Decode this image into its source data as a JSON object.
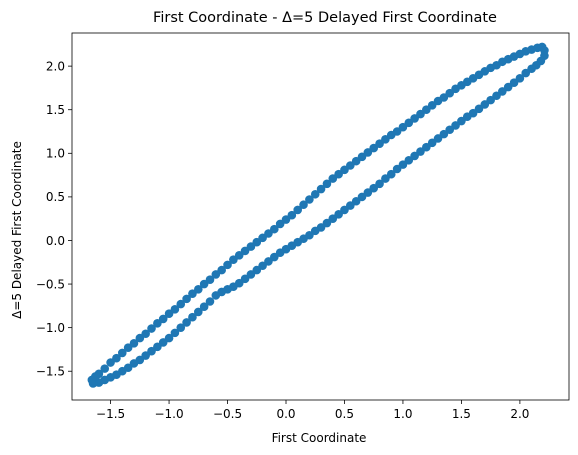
{
  "chart_data": {
    "type": "scatter",
    "title": "First Coordinate - Δ=5 Delayed First Coordinate",
    "xlabel": "First Coordinate",
    "ylabel": "Δ=5 Delayed First Coordinate",
    "xlim": [
      -1.83,
      2.42
    ],
    "ylim": [
      -1.83,
      2.38
    ],
    "xticks": [
      -1.5,
      -1.0,
      -0.5,
      0.0,
      0.5,
      1.0,
      1.5,
      2.0
    ],
    "yticks": [
      -1.5,
      -1.0,
      -0.5,
      0.0,
      0.5,
      1.0,
      1.5,
      2.0
    ],
    "xtick_labels": [
      "−1.5",
      "−1.0",
      "−0.5",
      "0.0",
      "0.5",
      "1.0",
      "1.5",
      "2.0"
    ],
    "ytick_labels": [
      "−1.5",
      "−1.0",
      "−0.5",
      "0.0",
      "0.5",
      "1.0",
      "1.5",
      "2.0"
    ],
    "grid": false,
    "marker_color": "#1f77b4",
    "series": [
      {
        "points": [
          [
            -1.64,
            -1.63
          ],
          [
            -1.6,
            -1.53
          ],
          [
            -1.55,
            -1.47
          ],
          [
            -1.5,
            -1.4
          ],
          [
            -1.45,
            -1.35
          ],
          [
            -1.4,
            -1.29
          ],
          [
            -1.35,
            -1.23
          ],
          [
            -1.3,
            -1.18
          ],
          [
            -1.25,
            -1.12
          ],
          [
            -1.2,
            -1.07
          ],
          [
            -1.15,
            -1.01
          ],
          [
            -1.1,
            -0.95
          ],
          [
            -1.05,
            -0.9
          ],
          [
            -1.0,
            -0.84
          ],
          [
            -0.95,
            -0.79
          ],
          [
            -0.9,
            -0.73
          ],
          [
            -0.85,
            -0.67
          ],
          [
            -0.8,
            -0.61
          ],
          [
            -0.75,
            -0.56
          ],
          [
            -0.7,
            -0.5
          ],
          [
            -0.65,
            -0.45
          ],
          [
            -0.6,
            -0.39
          ],
          [
            -0.55,
            -0.34
          ],
          [
            -0.5,
            -0.28
          ],
          [
            -0.45,
            -0.22
          ],
          [
            -0.4,
            -0.17
          ],
          [
            -0.35,
            -0.12
          ],
          [
            -0.3,
            -0.07
          ],
          [
            -0.25,
            -0.02
          ],
          [
            -0.2,
            0.03
          ],
          [
            -0.15,
            0.08
          ],
          [
            -0.1,
            0.13
          ],
          [
            -0.05,
            0.19
          ],
          [
            0.0,
            0.24
          ],
          [
            0.05,
            0.29
          ],
          [
            0.1,
            0.35
          ],
          [
            0.15,
            0.41
          ],
          [
            0.2,
            0.47
          ],
          [
            0.25,
            0.53
          ],
          [
            0.3,
            0.59
          ],
          [
            0.35,
            0.65
          ],
          [
            0.4,
            0.71
          ],
          [
            0.45,
            0.76
          ],
          [
            0.5,
            0.81
          ],
          [
            0.55,
            0.86
          ],
          [
            0.6,
            0.91
          ],
          [
            0.65,
            0.96
          ],
          [
            0.7,
            1.01
          ],
          [
            0.75,
            1.06
          ],
          [
            0.8,
            1.11
          ],
          [
            0.85,
            1.16
          ],
          [
            0.9,
            1.21
          ],
          [
            0.95,
            1.25
          ],
          [
            1.0,
            1.3
          ],
          [
            1.05,
            1.35
          ],
          [
            1.1,
            1.4
          ],
          [
            1.15,
            1.45
          ],
          [
            1.2,
            1.5
          ],
          [
            1.25,
            1.55
          ],
          [
            1.3,
            1.6
          ],
          [
            1.35,
            1.64
          ],
          [
            1.4,
            1.69
          ],
          [
            1.45,
            1.74
          ],
          [
            1.5,
            1.78
          ],
          [
            1.55,
            1.82
          ],
          [
            1.6,
            1.86
          ],
          [
            1.65,
            1.9
          ],
          [
            1.7,
            1.94
          ],
          [
            1.75,
            1.98
          ],
          [
            1.8,
            2.01
          ],
          [
            1.85,
            2.05
          ],
          [
            1.9,
            2.08
          ],
          [
            1.95,
            2.11
          ],
          [
            2.0,
            2.14
          ],
          [
            2.05,
            2.17
          ],
          [
            2.1,
            2.19
          ],
          [
            2.15,
            2.21
          ],
          [
            2.19,
            2.22
          ],
          [
            2.21,
            2.18
          ],
          [
            2.21,
            2.12
          ],
          [
            2.18,
            2.06
          ],
          [
            2.14,
            2.01
          ],
          [
            2.1,
            1.97
          ],
          [
            2.05,
            1.92
          ],
          [
            2.0,
            1.86
          ],
          [
            1.95,
            1.81
          ],
          [
            1.9,
            1.76
          ],
          [
            1.85,
            1.71
          ],
          [
            1.8,
            1.66
          ],
          [
            1.75,
            1.61
          ],
          [
            1.7,
            1.56
          ],
          [
            1.65,
            1.51
          ],
          [
            1.6,
            1.46
          ],
          [
            1.55,
            1.42
          ],
          [
            1.5,
            1.37
          ],
          [
            1.45,
            1.32
          ],
          [
            1.4,
            1.27
          ],
          [
            1.35,
            1.22
          ],
          [
            1.3,
            1.17
          ],
          [
            1.25,
            1.12
          ],
          [
            1.2,
            1.07
          ],
          [
            1.15,
            1.02
          ],
          [
            1.1,
            0.97
          ],
          [
            1.05,
            0.92
          ],
          [
            1.0,
            0.87
          ],
          [
            0.95,
            0.82
          ],
          [
            0.9,
            0.76
          ],
          [
            0.85,
            0.71
          ],
          [
            0.8,
            0.65
          ],
          [
            0.75,
            0.6
          ],
          [
            0.7,
            0.55
          ],
          [
            0.65,
            0.5
          ],
          [
            0.6,
            0.45
          ],
          [
            0.55,
            0.4
          ],
          [
            0.5,
            0.35
          ],
          [
            0.45,
            0.3
          ],
          [
            0.4,
            0.25
          ],
          [
            0.35,
            0.2
          ],
          [
            0.3,
            0.15
          ],
          [
            0.25,
            0.11
          ],
          [
            0.2,
            0.06
          ],
          [
            0.15,
            0.02
          ],
          [
            0.1,
            -0.02
          ],
          [
            0.05,
            -0.06
          ],
          [
            0.0,
            -0.1
          ],
          [
            -0.05,
            -0.14
          ],
          [
            -0.1,
            -0.19
          ],
          [
            -0.15,
            -0.24
          ],
          [
            -0.2,
            -0.29
          ],
          [
            -0.25,
            -0.34
          ],
          [
            -0.3,
            -0.39
          ],
          [
            -0.35,
            -0.44
          ],
          [
            -0.4,
            -0.49
          ],
          [
            -0.45,
            -0.53
          ],
          [
            -0.5,
            -0.56
          ],
          [
            -0.55,
            -0.59
          ],
          [
            -0.6,
            -0.63
          ],
          [
            -0.65,
            -0.7
          ],
          [
            -0.7,
            -0.76
          ],
          [
            -0.75,
            -0.82
          ],
          [
            -0.8,
            -0.88
          ],
          [
            -0.85,
            -0.94
          ],
          [
            -0.9,
            -1.0
          ],
          [
            -0.95,
            -1.06
          ],
          [
            -1.0,
            -1.12
          ],
          [
            -1.05,
            -1.17
          ],
          [
            -1.1,
            -1.22
          ],
          [
            -1.15,
            -1.27
          ],
          [
            -1.2,
            -1.32
          ],
          [
            -1.25,
            -1.37
          ],
          [
            -1.3,
            -1.41
          ],
          [
            -1.35,
            -1.46
          ],
          [
            -1.4,
            -1.5
          ],
          [
            -1.45,
            -1.54
          ],
          [
            -1.5,
            -1.57
          ],
          [
            -1.55,
            -1.6
          ],
          [
            -1.6,
            -1.63
          ],
          [
            -1.65,
            -1.64
          ],
          [
            -1.66,
            -1.6
          ],
          [
            -1.63,
            -1.56
          ]
        ]
      }
    ]
  }
}
